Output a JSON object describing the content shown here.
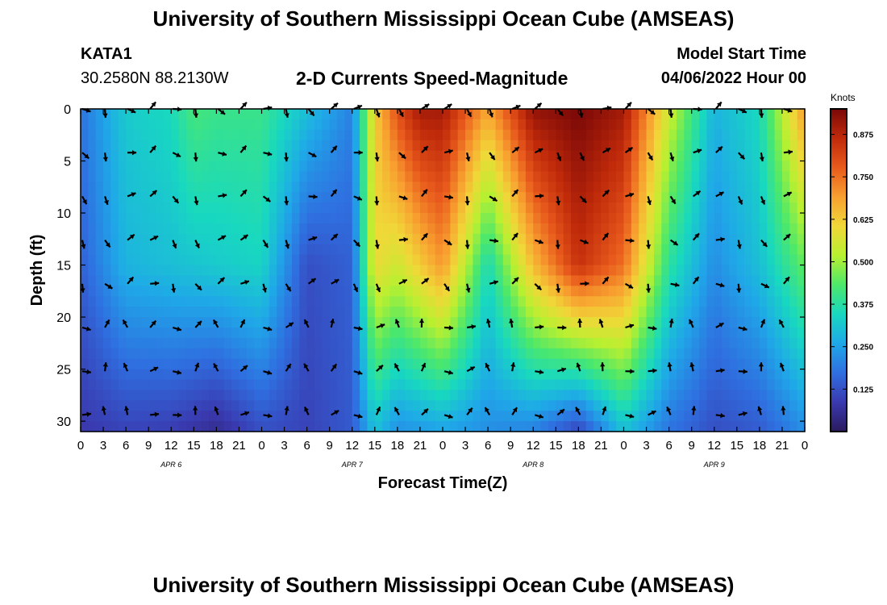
{
  "header": {
    "title": "University of Southern Mississippi Ocean Cube (AMSEAS)",
    "station": "KATA1",
    "coords": "30.2580N  88.2130W",
    "subtitle": "2-D Currents Speed-Magnitude",
    "model_start_label": "Model Start Time",
    "model_start_value": "04/06/2022 Hour 00"
  },
  "footer": {
    "title": "University of Southern Mississippi Ocean Cube (AMSEAS)"
  },
  "chart_data": {
    "type": "heatmap",
    "title": "2-D Currents Speed-Magnitude",
    "xlabel": "Forecast Time(Z)",
    "ylabel": "Depth (ft)",
    "x_range_hours": [
      0,
      96
    ],
    "y_range_ft": [
      0,
      31
    ],
    "x_ticks": [
      {
        "h": 0,
        "label": "0"
      },
      {
        "h": 3,
        "label": "3"
      },
      {
        "h": 6,
        "label": "6"
      },
      {
        "h": 9,
        "label": "9"
      },
      {
        "h": 12,
        "label": "12"
      },
      {
        "h": 15,
        "label": "15"
      },
      {
        "h": 18,
        "label": "18"
      },
      {
        "h": 21,
        "label": "21"
      },
      {
        "h": 24,
        "label": "0"
      },
      {
        "h": 27,
        "label": "3"
      },
      {
        "h": 30,
        "label": "6"
      },
      {
        "h": 33,
        "label": "9"
      },
      {
        "h": 36,
        "label": "12"
      },
      {
        "h": 39,
        "label": "15"
      },
      {
        "h": 42,
        "label": "18"
      },
      {
        "h": 45,
        "label": "21"
      },
      {
        "h": 48,
        "label": "0"
      },
      {
        "h": 51,
        "label": "3"
      },
      {
        "h": 54,
        "label": "6"
      },
      {
        "h": 57,
        "label": "9"
      },
      {
        "h": 60,
        "label": "12"
      },
      {
        "h": 63,
        "label": "15"
      },
      {
        "h": 66,
        "label": "18"
      },
      {
        "h": 69,
        "label": "21"
      },
      {
        "h": 72,
        "label": "0"
      },
      {
        "h": 75,
        "label": "3"
      },
      {
        "h": 78,
        "label": "6"
      },
      {
        "h": 81,
        "label": "9"
      },
      {
        "h": 84,
        "label": "12"
      },
      {
        "h": 87,
        "label": "15"
      },
      {
        "h": 90,
        "label": "18"
      },
      {
        "h": 93,
        "label": "21"
      },
      {
        "h": 96,
        "label": "0"
      }
    ],
    "date_labels": [
      {
        "h": 12,
        "label": "APR 6"
      },
      {
        "h": 36,
        "label": "APR 7"
      },
      {
        "h": 60,
        "label": "APR 8"
      },
      {
        "h": 84,
        "label": "APR 9"
      }
    ],
    "y_ticks": [
      0,
      5,
      10,
      15,
      20,
      25,
      30
    ],
    "colorbar": {
      "label": "Knots",
      "range": [
        0.0,
        0.95
      ],
      "ticks": [
        "0.125",
        "0.250",
        "0.375",
        "0.500",
        "0.625",
        "0.750",
        "0.875"
      ],
      "colors": [
        "#2b1a5e",
        "#3a3ab0",
        "#2f6fe0",
        "#1fa8e8",
        "#18d8c0",
        "#4de86a",
        "#b8f030",
        "#f0d838",
        "#f8a030",
        "#e85a1c",
        "#c02a0a",
        "#7a0808"
      ]
    },
    "series": [
      {
        "name": "speed_knots_surface_0ft",
        "x_hours": [
          0,
          6,
          12,
          15,
          18,
          24,
          30,
          36,
          39,
          42,
          45,
          48,
          54,
          60,
          66,
          72,
          78,
          84,
          90,
          96
        ],
        "values": [
          0.18,
          0.32,
          0.35,
          0.42,
          0.4,
          0.4,
          0.3,
          0.2,
          0.62,
          0.8,
          0.9,
          0.9,
          0.68,
          0.92,
          0.95,
          0.9,
          0.55,
          0.28,
          0.35,
          0.7
        ]
      },
      {
        "name": "speed_knots_mid_15ft",
        "x_hours": [
          0,
          6,
          12,
          18,
          24,
          30,
          36,
          39,
          42,
          48,
          54,
          60,
          66,
          72,
          78,
          84,
          90,
          96
        ],
        "values": [
          0.15,
          0.28,
          0.3,
          0.32,
          0.34,
          0.12,
          0.15,
          0.6,
          0.55,
          0.7,
          0.35,
          0.65,
          0.85,
          0.75,
          0.38,
          0.22,
          0.3,
          0.45
        ]
      },
      {
        "name": "speed_knots_bottom_30ft",
        "x_hours": [
          0,
          6,
          12,
          18,
          24,
          30,
          36,
          39,
          42,
          48,
          54,
          60,
          66,
          72,
          78,
          84,
          90,
          96
        ],
        "values": [
          0.08,
          0.1,
          0.09,
          0.05,
          0.12,
          0.1,
          0.14,
          0.3,
          0.22,
          0.25,
          0.22,
          0.2,
          0.1,
          0.3,
          0.18,
          0.12,
          0.14,
          0.22
        ]
      }
    ],
    "vector_rows_ft": [
      0,
      4.2,
      8.4,
      12.6,
      16.8,
      21,
      25.2,
      29.4
    ],
    "vector_cols_hours": [
      0,
      3,
      6,
      9,
      12,
      15,
      18,
      21,
      24,
      27,
      30,
      33,
      36,
      39,
      42,
      45,
      48,
      51,
      54,
      57,
      60,
      63,
      66,
      69,
      72,
      75,
      78,
      81,
      84,
      87,
      90,
      93
    ]
  }
}
